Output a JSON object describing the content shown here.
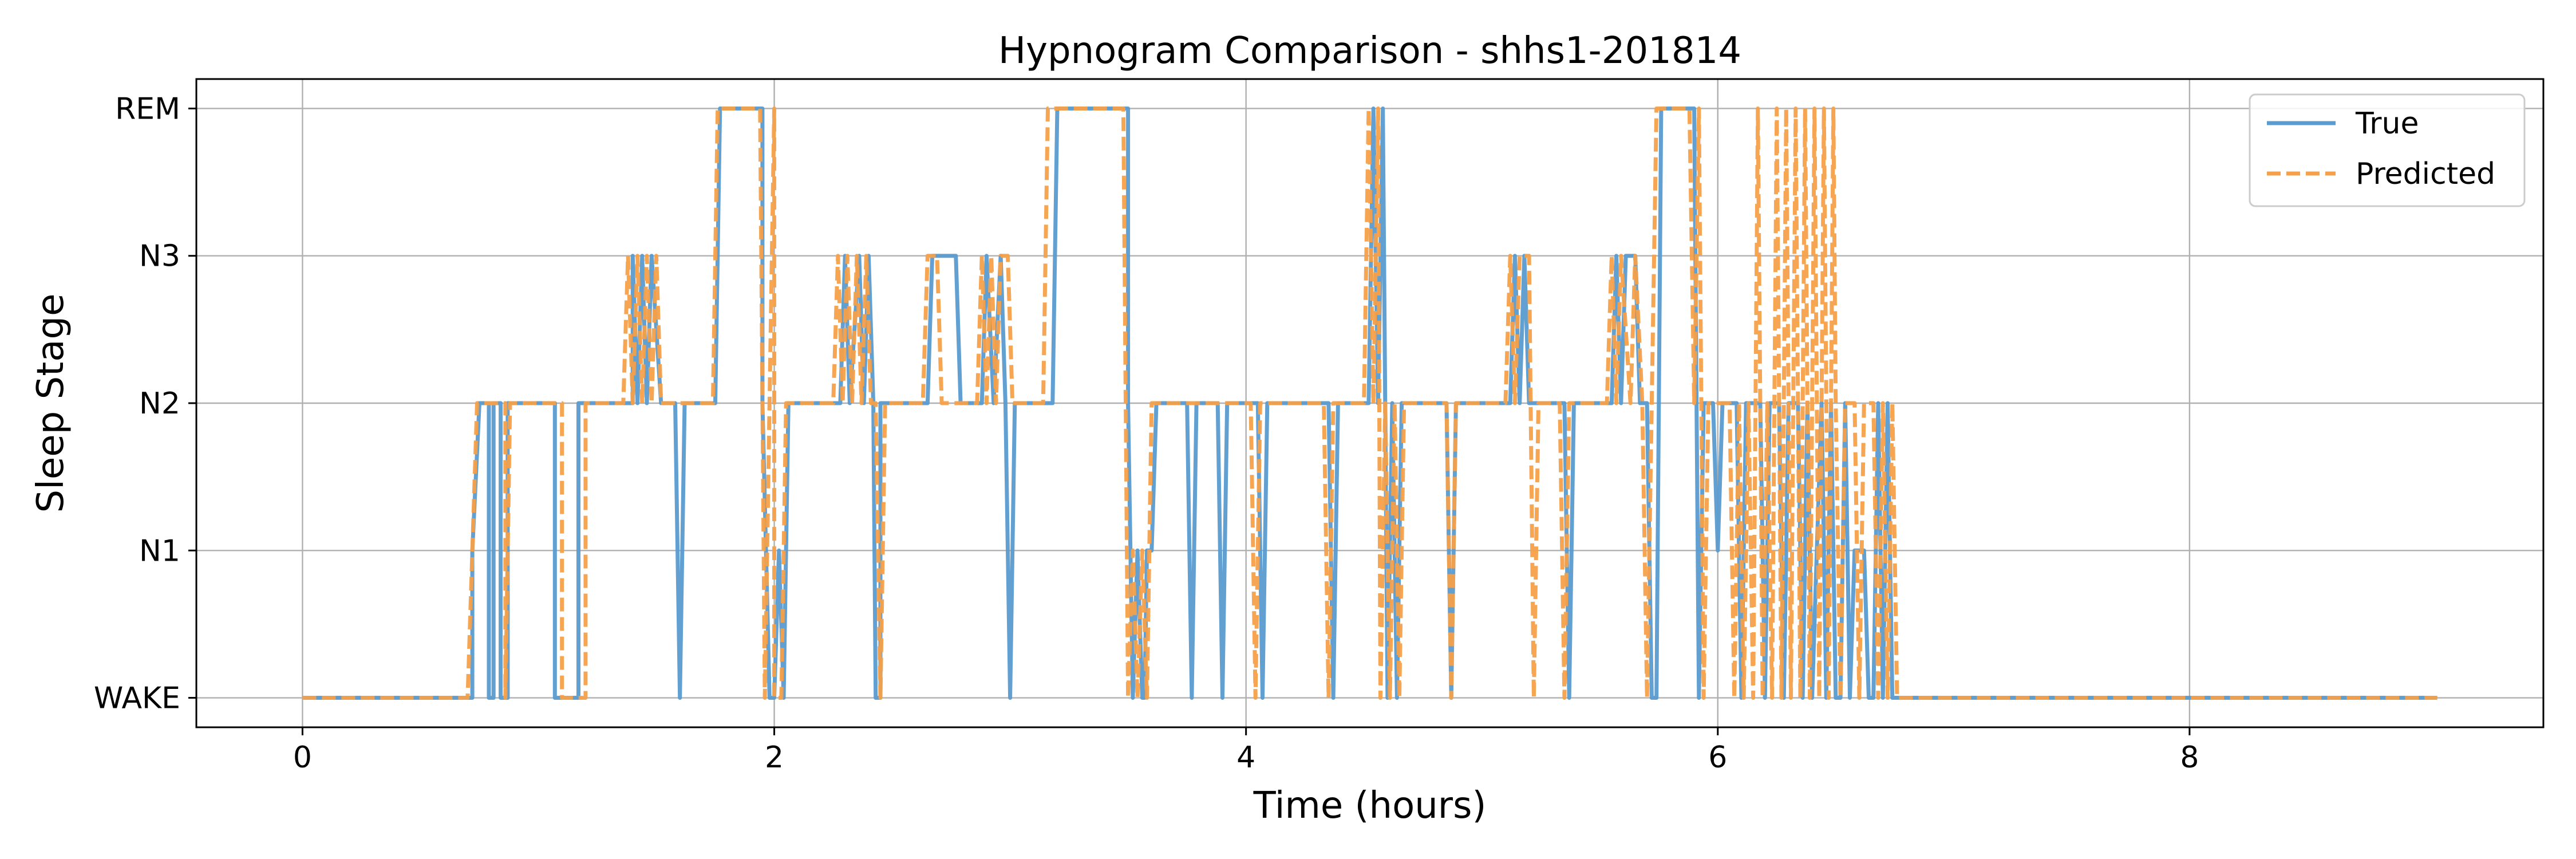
{
  "chart_data": {
    "type": "line",
    "title": "Hypnogram Comparison - shhs1-201814",
    "xlabel": "Time (hours)",
    "ylabel": "Sleep Stage",
    "xlim": [
      -0.45,
      9.5
    ],
    "ylim": [
      -0.2,
      4.2
    ],
    "xticks": [
      0,
      2,
      4,
      6,
      8
    ],
    "yticks": [
      0,
      1,
      2,
      3,
      4
    ],
    "ytick_labels": [
      "WAKE",
      "N1",
      "N2",
      "N3",
      "REM"
    ],
    "grid": true,
    "legend": {
      "position": "top-right",
      "entries": [
        "True",
        "Predicted"
      ]
    },
    "series": [
      {
        "name": "True",
        "color": "#5b9bd0",
        "style": "solid",
        "segments": [
          [
            0,
            0
          ],
          [
            0.72,
            0
          ],
          [
            0.72,
            1
          ],
          [
            0.75,
            2
          ],
          [
            0.79,
            2
          ],
          [
            0.79,
            0
          ],
          [
            0.81,
            0
          ],
          [
            0.81,
            2
          ],
          [
            0.84,
            2
          ],
          [
            0.84,
            0
          ],
          [
            0.87,
            0
          ],
          [
            0.87,
            2
          ],
          [
            1.07,
            2
          ],
          [
            1.07,
            0
          ],
          [
            1.17,
            0
          ],
          [
            1.17,
            2
          ],
          [
            1.4,
            2
          ],
          [
            1.4,
            3
          ],
          [
            1.42,
            2
          ],
          [
            1.44,
            3
          ],
          [
            1.46,
            2
          ],
          [
            1.48,
            3
          ],
          [
            1.52,
            2
          ],
          [
            1.58,
            2
          ],
          [
            1.6,
            0
          ],
          [
            1.62,
            2
          ],
          [
            1.75,
            2
          ],
          [
            1.77,
            4
          ],
          [
            1.95,
            4
          ],
          [
            1.95,
            2
          ],
          [
            1.98,
            0
          ],
          [
            2.0,
            0
          ],
          [
            2.02,
            1
          ],
          [
            2.04,
            0
          ],
          [
            2.06,
            2
          ],
          [
            2.28,
            2
          ],
          [
            2.3,
            3
          ],
          [
            2.32,
            2
          ],
          [
            2.36,
            3
          ],
          [
            2.38,
            2
          ],
          [
            2.4,
            3
          ],
          [
            2.42,
            2
          ],
          [
            2.43,
            0
          ],
          [
            2.45,
            0
          ],
          [
            2.45,
            2
          ],
          [
            2.65,
            2
          ],
          [
            2.67,
            3
          ],
          [
            2.77,
            3
          ],
          [
            2.79,
            2
          ],
          [
            2.88,
            2
          ],
          [
            2.9,
            3
          ],
          [
            2.93,
            2
          ],
          [
            2.96,
            3
          ],
          [
            2.98,
            2
          ],
          [
            3.0,
            0
          ],
          [
            3.02,
            2
          ],
          [
            3.18,
            2
          ],
          [
            3.2,
            4
          ],
          [
            3.5,
            4
          ],
          [
            3.5,
            2
          ],
          [
            3.52,
            0
          ],
          [
            3.54,
            1
          ],
          [
            3.56,
            0
          ],
          [
            3.57,
            0
          ],
          [
            3.58,
            1
          ],
          [
            3.6,
            1
          ],
          [
            3.62,
            2
          ],
          [
            3.75,
            2
          ],
          [
            3.77,
            0
          ],
          [
            3.79,
            2
          ],
          [
            3.88,
            2
          ],
          [
            3.9,
            0
          ],
          [
            3.92,
            2
          ],
          [
            4.05,
            2
          ],
          [
            4.07,
            0
          ],
          [
            4.09,
            2
          ],
          [
            4.35,
            2
          ],
          [
            4.37,
            0
          ],
          [
            4.39,
            2
          ],
          [
            4.52,
            2
          ],
          [
            4.54,
            4
          ],
          [
            4.56,
            2
          ],
          [
            4.58,
            4
          ],
          [
            4.6,
            0
          ],
          [
            4.62,
            2
          ],
          [
            4.64,
            0
          ],
          [
            4.66,
            2
          ],
          [
            4.85,
            2
          ],
          [
            4.87,
            0
          ],
          [
            4.89,
            2
          ],
          [
            5.12,
            2
          ],
          [
            5.14,
            3
          ],
          [
            5.16,
            2
          ],
          [
            5.18,
            3
          ],
          [
            5.2,
            2
          ],
          [
            5.35,
            2
          ],
          [
            5.37,
            0
          ],
          [
            5.39,
            2
          ],
          [
            5.55,
            2
          ],
          [
            5.57,
            3
          ],
          [
            5.59,
            2
          ],
          [
            5.61,
            3
          ],
          [
            5.65,
            3
          ],
          [
            5.67,
            2
          ],
          [
            5.7,
            2
          ],
          [
            5.72,
            0
          ],
          [
            5.74,
            0
          ],
          [
            5.76,
            4
          ],
          [
            5.9,
            4
          ],
          [
            5.92,
            0
          ],
          [
            5.94,
            2
          ],
          [
            5.98,
            2
          ],
          [
            6.0,
            1
          ],
          [
            6.02,
            2
          ],
          [
            6.08,
            2
          ],
          [
            6.1,
            0
          ],
          [
            6.12,
            2
          ],
          [
            6.18,
            2
          ],
          [
            6.2,
            0
          ],
          [
            6.22,
            2
          ],
          [
            6.26,
            2
          ],
          [
            6.28,
            0
          ],
          [
            6.3,
            2
          ],
          [
            6.34,
            2
          ],
          [
            6.36,
            0
          ],
          [
            6.38,
            2
          ],
          [
            6.4,
            0
          ],
          [
            6.44,
            2
          ],
          [
            6.46,
            0
          ],
          [
            6.48,
            2
          ],
          [
            6.5,
            0
          ],
          [
            6.52,
            0
          ],
          [
            6.54,
            2
          ],
          [
            6.56,
            0
          ],
          [
            6.58,
            1
          ],
          [
            6.62,
            1
          ],
          [
            6.64,
            0
          ],
          [
            6.66,
            0
          ],
          [
            6.68,
            2
          ],
          [
            6.7,
            0
          ],
          [
            6.72,
            2
          ],
          [
            6.74,
            0
          ],
          [
            9.05,
            0
          ]
        ]
      },
      {
        "name": "Predicted",
        "color": "#f5a04a",
        "style": "dashed",
        "segments": [
          [
            0,
            0
          ],
          [
            0.7,
            0
          ],
          [
            0.74,
            2
          ],
          [
            0.86,
            2
          ],
          [
            0.86,
            0
          ],
          [
            0.88,
            2
          ],
          [
            1.1,
            2
          ],
          [
            1.1,
            0
          ],
          [
            1.2,
            0
          ],
          [
            1.2,
            2
          ],
          [
            1.36,
            2
          ],
          [
            1.38,
            3
          ],
          [
            1.4,
            2
          ],
          [
            1.42,
            3
          ],
          [
            1.44,
            2
          ],
          [
            1.46,
            3
          ],
          [
            1.48,
            2
          ],
          [
            1.5,
            3
          ],
          [
            1.52,
            2
          ],
          [
            1.74,
            2
          ],
          [
            1.76,
            4
          ],
          [
            1.94,
            4
          ],
          [
            1.96,
            0
          ],
          [
            1.98,
            2
          ],
          [
            2.0,
            4
          ],
          [
            2.0,
            0
          ],
          [
            2.03,
            0
          ],
          [
            2.05,
            2
          ],
          [
            2.25,
            2
          ],
          [
            2.27,
            3
          ],
          [
            2.29,
            2
          ],
          [
            2.31,
            3
          ],
          [
            2.33,
            2
          ],
          [
            2.35,
            3
          ],
          [
            2.37,
            2
          ],
          [
            2.39,
            3
          ],
          [
            2.41,
            2
          ],
          [
            2.43,
            2
          ],
          [
            2.45,
            0
          ],
          [
            2.47,
            2
          ],
          [
            2.63,
            2
          ],
          [
            2.65,
            3
          ],
          [
            2.69,
            3
          ],
          [
            2.71,
            2
          ],
          [
            2.86,
            2
          ],
          [
            2.88,
            3
          ],
          [
            2.9,
            2
          ],
          [
            2.92,
            3
          ],
          [
            2.94,
            2
          ],
          [
            2.96,
            3
          ],
          [
            2.99,
            3
          ],
          [
            3.01,
            2
          ],
          [
            3.14,
            2
          ],
          [
            3.16,
            4
          ],
          [
            3.48,
            4
          ],
          [
            3.5,
            0
          ],
          [
            3.52,
            1
          ],
          [
            3.54,
            0
          ],
          [
            3.56,
            1
          ],
          [
            3.58,
            0
          ],
          [
            3.6,
            2
          ],
          [
            4.02,
            2
          ],
          [
            4.04,
            0
          ],
          [
            4.06,
            2
          ],
          [
            4.33,
            2
          ],
          [
            4.35,
            0
          ],
          [
            4.37,
            2
          ],
          [
            4.5,
            2
          ],
          [
            4.52,
            4
          ],
          [
            4.54,
            2
          ],
          [
            4.56,
            4
          ],
          [
            4.57,
            0
          ],
          [
            4.59,
            2
          ],
          [
            4.61,
            0
          ],
          [
            4.63,
            2
          ],
          [
            4.65,
            0
          ],
          [
            4.67,
            2
          ],
          [
            4.85,
            2
          ],
          [
            4.87,
            0
          ],
          [
            4.89,
            2
          ],
          [
            5.1,
            2
          ],
          [
            5.12,
            3
          ],
          [
            5.14,
            2
          ],
          [
            5.16,
            3
          ],
          [
            5.2,
            3
          ],
          [
            5.22,
            0
          ],
          [
            5.24,
            2
          ],
          [
            5.33,
            2
          ],
          [
            5.35,
            0
          ],
          [
            5.37,
            2
          ],
          [
            5.53,
            2
          ],
          [
            5.55,
            3
          ],
          [
            5.57,
            2
          ],
          [
            5.59,
            3
          ],
          [
            5.63,
            2
          ],
          [
            5.65,
            3
          ],
          [
            5.68,
            2
          ],
          [
            5.7,
            0
          ],
          [
            5.72,
            2
          ],
          [
            5.74,
            4
          ],
          [
            5.88,
            4
          ],
          [
            5.9,
            2
          ],
          [
            5.92,
            4
          ],
          [
            5.94,
            0
          ],
          [
            5.96,
            2
          ],
          [
            6.05,
            2
          ],
          [
            6.07,
            0
          ],
          [
            6.09,
            2
          ],
          [
            6.11,
            0
          ],
          [
            6.13,
            2
          ],
          [
            6.15,
            0
          ],
          [
            6.17,
            4
          ],
          [
            6.19,
            0
          ],
          [
            6.21,
            2
          ],
          [
            6.23,
            0
          ],
          [
            6.25,
            4
          ],
          [
            6.27,
            0
          ],
          [
            6.29,
            4
          ],
          [
            6.31,
            0
          ],
          [
            6.33,
            4
          ],
          [
            6.35,
            0
          ],
          [
            6.37,
            4
          ],
          [
            6.39,
            0
          ],
          [
            6.41,
            4
          ],
          [
            6.43,
            0
          ],
          [
            6.45,
            4
          ],
          [
            6.47,
            0
          ],
          [
            6.49,
            4
          ],
          [
            6.5,
            2
          ],
          [
            6.52,
            0
          ],
          [
            6.54,
            2
          ],
          [
            6.58,
            2
          ],
          [
            6.6,
            0
          ],
          [
            6.62,
            2
          ],
          [
            6.66,
            2
          ],
          [
            6.68,
            0
          ],
          [
            6.7,
            2
          ],
          [
            6.72,
            0
          ],
          [
            6.74,
            2
          ],
          [
            6.76,
            0
          ],
          [
            9.05,
            0
          ]
        ]
      }
    ]
  }
}
